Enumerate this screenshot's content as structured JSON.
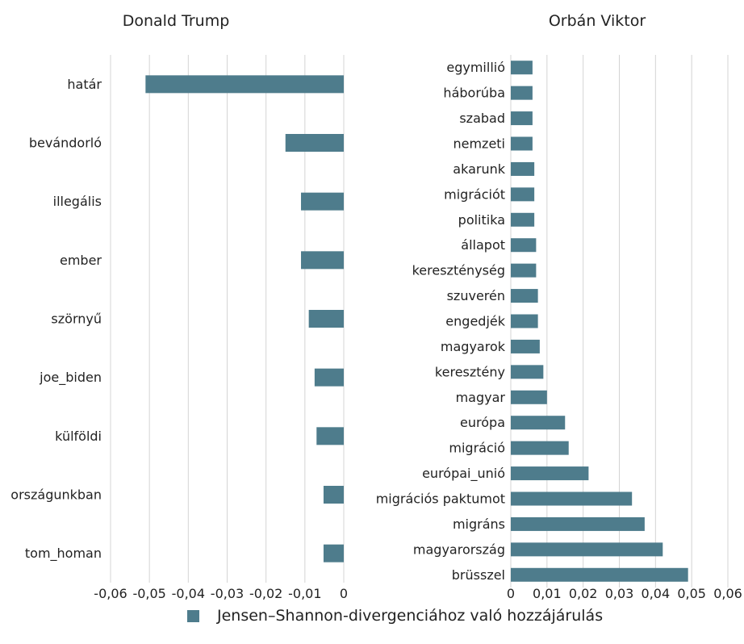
{
  "chart_data": [
    {
      "type": "bar",
      "orientation": "horizontal",
      "title": "Donald Trump",
      "categories": [
        "határ",
        "bevándorló",
        "illegális",
        "ember",
        "szörnyű",
        "joe_biden",
        "külföldi",
        "országunkban",
        "tom_homan"
      ],
      "values": [
        -0.051,
        -0.015,
        -0.011,
        -0.011,
        -0.009,
        -0.0075,
        -0.007,
        -0.0052,
        -0.0052
      ],
      "xlim": [
        -0.06,
        0
      ],
      "ticks": [
        -0.06,
        -0.05,
        -0.04,
        -0.03,
        -0.02,
        -0.01,
        0
      ],
      "tick_labels": [
        "-0,06",
        "-0,05",
        "-0,04",
        "-0,03",
        "-0,02",
        "-0,01",
        "0"
      ],
      "grid": true
    },
    {
      "type": "bar",
      "orientation": "horizontal",
      "title": "Orbán Viktor",
      "categories": [
        "egymillió",
        "háborúba",
        "szabad",
        "nemzeti",
        "akarunk",
        "migrációt",
        "politika",
        "állapot",
        "kereszténység",
        "szuverén",
        "engedjék",
        "magyarok",
        "keresztény",
        "magyar",
        "európa",
        "migráció",
        "európai_unió",
        "migrációs paktumot",
        "migráns",
        "magyarország",
        "brüsszel"
      ],
      "values": [
        0.006,
        0.006,
        0.006,
        0.006,
        0.0065,
        0.0065,
        0.0065,
        0.007,
        0.007,
        0.0075,
        0.0075,
        0.008,
        0.009,
        0.01,
        0.015,
        0.016,
        0.0215,
        0.0335,
        0.037,
        0.042,
        0.049
      ],
      "xlim": [
        0,
        0.06
      ],
      "ticks": [
        0,
        0.01,
        0.02,
        0.03,
        0.04,
        0.05,
        0.06
      ],
      "tick_labels": [
        "0",
        "0,01",
        "0,02",
        "0,03",
        "0,04",
        "0,05",
        "0,06"
      ],
      "grid": true
    }
  ],
  "legend": {
    "label": "Jensen–Shannon-divergenciához való hozzájárulás",
    "position": "bottom"
  },
  "colors": {
    "bar": "#4e7c8c",
    "grid": "#d4d4d4",
    "text": "#222222"
  }
}
